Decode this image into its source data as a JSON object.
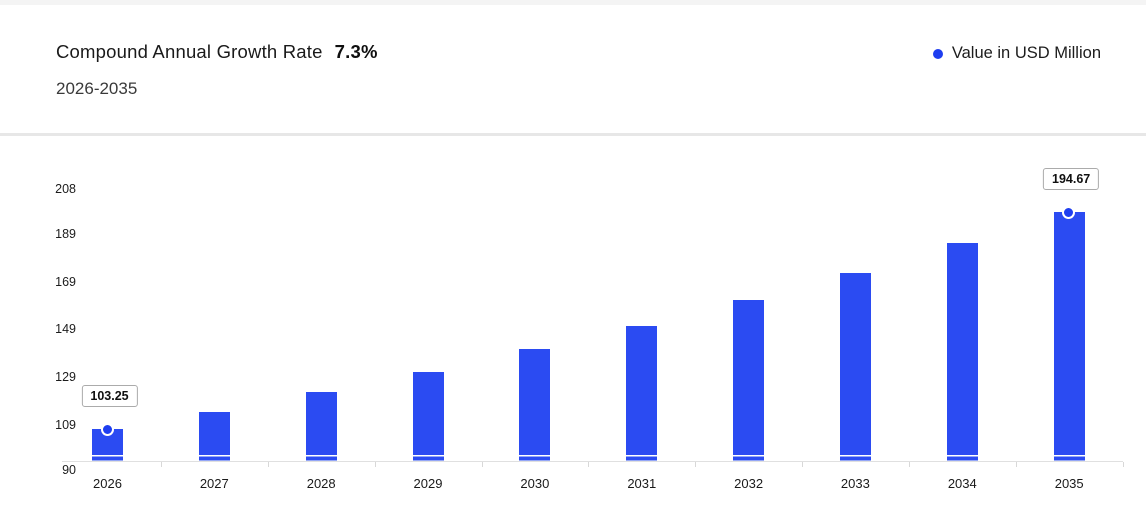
{
  "header": {
    "title": "Compound Annual Growth Rate",
    "cagr_value": "7.3%",
    "subtitle": "2026-2035",
    "legend": {
      "label": "Value in USD Million",
      "marker_color": "#1e3ef0"
    }
  },
  "chart_data": {
    "type": "bar",
    "title": "Compound Annual Growth Rate 7.3%",
    "subtitle": "2026-2035",
    "unit": "USD Million",
    "categories": [
      "2026",
      "2027",
      "2028",
      "2029",
      "2030",
      "2031",
      "2032",
      "2033",
      "2034",
      "2035"
    ],
    "values": [
      103.25,
      110.79,
      118.88,
      127.55,
      136.87,
      146.86,
      157.58,
      169.08,
      181.42,
      194.67
    ],
    "visible_point_labels": [
      {
        "category": "2026",
        "label": "103.25"
      },
      {
        "category": "2035",
        "label": "194.67"
      }
    ],
    "y_ticks": [
      208,
      189,
      169,
      149,
      129,
      109,
      90
    ],
    "ylim": [
      90,
      213
    ],
    "bar_color": "#2b4bf2",
    "marker_color": "#1e3ef0",
    "grid": false,
    "legend_entries": [
      "Value in USD Million"
    ],
    "legend_position": "top-right"
  }
}
